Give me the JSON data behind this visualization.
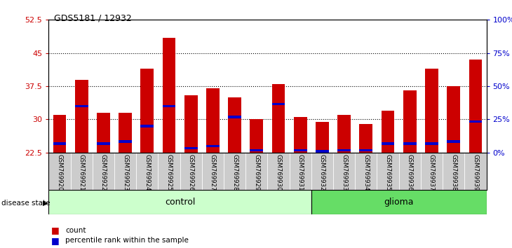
{
  "title": "GDS5181 / 12932",
  "samples": [
    "GSM769920",
    "GSM769921",
    "GSM769922",
    "GSM769923",
    "GSM769924",
    "GSM769925",
    "GSM769926",
    "GSM769927",
    "GSM769928",
    "GSM769929",
    "GSM769930",
    "GSM769931",
    "GSM769932",
    "GSM769933",
    "GSM769934",
    "GSM769935",
    "GSM769936",
    "GSM769937",
    "GSM769938",
    "GSM769939"
  ],
  "count_values": [
    31.0,
    39.0,
    31.5,
    31.5,
    41.5,
    48.5,
    35.5,
    37.0,
    35.0,
    30.0,
    38.0,
    30.5,
    29.5,
    31.0,
    29.0,
    32.0,
    36.5,
    41.5,
    37.5,
    43.5
  ],
  "percentile_values": [
    24.5,
    33.0,
    24.5,
    25.0,
    28.5,
    33.0,
    23.5,
    24.0,
    30.5,
    23.0,
    33.5,
    23.0,
    22.8,
    23.0,
    23.0,
    24.5,
    24.5,
    24.5,
    25.0,
    29.5
  ],
  "ymin": 22.5,
  "ymax": 52.5,
  "yticks_left": [
    22.5,
    30,
    37.5,
    45,
    52.5
  ],
  "yticks_right_vals": [
    0,
    25,
    50,
    75,
    100
  ],
  "yticks_right_labels": [
    "0%",
    "25%",
    "50%",
    "75%",
    "100%"
  ],
  "control_count": 12,
  "glioma_count": 8,
  "bar_color": "#cc0000",
  "blue_color": "#0000cc",
  "control_color": "#ccffcc",
  "glioma_color": "#66dd66",
  "bg_color": "#cccccc",
  "left_label_color": "#cc0000",
  "right_label_color": "#0000cc",
  "bar_width": 0.6,
  "dotted_lines": [
    30,
    37.5,
    45
  ]
}
